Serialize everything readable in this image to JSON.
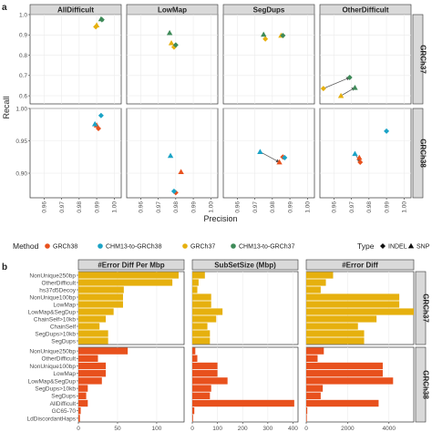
{
  "chart_data": [
    {
      "panel_label": "a",
      "type": "scatter",
      "xlabel": "Precision",
      "ylabel": "Recall",
      "xticks": [
        0.96,
        0.97,
        0.98,
        0.99,
        1.0
      ],
      "xtick_labels": [
        "0.96",
        "0.97",
        "0.98",
        "0.99",
        "1.00"
      ],
      "xlim": [
        0.952,
        1.004
      ],
      "rows": [
        {
          "name": "GRCh37",
          "ylim": [
            0.56,
            1.0
          ],
          "yticks": [
            0.6,
            0.7,
            0.8,
            0.9,
            1.0
          ],
          "ytick_labels": [
            "0.6",
            "0.7",
            "0.8",
            "0.9",
            "1.0"
          ]
        },
        {
          "name": "GRCh38",
          "ylim": [
            0.862,
            1.0
          ],
          "yticks": [
            0.9,
            0.95,
            1.0
          ],
          "ytick_labels": [
            "0.90",
            "0.95",
            "1.00"
          ]
        }
      ],
      "columns": [
        "AllDifficult",
        "LowMap",
        "SegDups",
        "OtherDifficult"
      ],
      "series_colors": {
        "GRCh38": "#e8511d",
        "CHM13-to-GRCh38": "#1ba3c6",
        "GRCh37": "#e6b00e",
        "CHM13-to-GRCh37": "#3e8a58"
      },
      "points": [
        {
          "row": "GRCh37",
          "col": "AllDifficult",
          "series": "GRCh37",
          "type": "INDEL",
          "x": 0.9895,
          "y": 0.94
        },
        {
          "row": "GRCh37",
          "col": "AllDifficult",
          "series": "GRCh37",
          "type": "SNP",
          "x": 0.99,
          "y": 0.948
        },
        {
          "row": "GRCh37",
          "col": "AllDifficult",
          "series": "CHM13-to-GRCh37",
          "type": "INDEL",
          "x": 0.993,
          "y": 0.975
        },
        {
          "row": "GRCh37",
          "col": "AllDifficult",
          "series": "CHM13-to-GRCh37",
          "type": "SNP",
          "x": 0.9925,
          "y": 0.978
        },
        {
          "row": "GRCh37",
          "col": "LowMap",
          "series": "GRCh37",
          "type": "INDEL",
          "x": 0.979,
          "y": 0.84
        },
        {
          "row": "GRCh37",
          "col": "LowMap",
          "series": "GRCh37",
          "type": "SNP",
          "x": 0.9775,
          "y": 0.86
        },
        {
          "row": "GRCh37",
          "col": "LowMap",
          "series": "CHM13-to-GRCh37",
          "type": "INDEL",
          "x": 0.98,
          "y": 0.85
        },
        {
          "row": "GRCh37",
          "col": "LowMap",
          "series": "CHM13-to-GRCh37",
          "type": "SNP",
          "x": 0.9765,
          "y": 0.91
        },
        {
          "row": "GRCh37",
          "col": "SegDups",
          "series": "GRCh37",
          "type": "INDEL",
          "x": 0.976,
          "y": 0.88
        },
        {
          "row": "GRCh37",
          "col": "SegDups",
          "series": "GRCh37",
          "type": "SNP",
          "x": 0.985,
          "y": 0.897
        },
        {
          "row": "GRCh37",
          "col": "SegDups",
          "series": "CHM13-to-GRCh37",
          "type": "INDEL",
          "x": 0.986,
          "y": 0.897
        },
        {
          "row": "GRCh37",
          "col": "SegDups",
          "series": "CHM13-to-GRCh37",
          "type": "SNP",
          "x": 0.975,
          "y": 0.902
        },
        {
          "row": "GRCh37",
          "col": "OtherDifficult",
          "series": "GRCh37",
          "type": "INDEL",
          "x": 0.954,
          "y": 0.636
        },
        {
          "row": "GRCh37",
          "col": "OtherDifficult",
          "series": "GRCh37",
          "type": "SNP",
          "x": 0.964,
          "y": 0.6
        },
        {
          "row": "GRCh37",
          "col": "OtherDifficult",
          "series": "CHM13-to-GRCh37",
          "type": "INDEL",
          "x": 0.969,
          "y": 0.69
        },
        {
          "row": "GRCh37",
          "col": "OtherDifficult",
          "series": "CHM13-to-GRCh37",
          "type": "SNP",
          "x": 0.972,
          "y": 0.64
        },
        {
          "row": "GRCh38",
          "col": "AllDifficult",
          "series": "GRCh38",
          "type": "INDEL",
          "x": 0.991,
          "y": 0.969
        },
        {
          "row": "GRCh38",
          "col": "AllDifficult",
          "series": "GRCh38",
          "type": "SNP",
          "x": 0.99,
          "y": 0.974
        },
        {
          "row": "GRCh38",
          "col": "AllDifficult",
          "series": "CHM13-to-GRCh38",
          "type": "INDEL",
          "x": 0.9925,
          "y": 0.989
        },
        {
          "row": "GRCh38",
          "col": "AllDifficult",
          "series": "CHM13-to-GRCh38",
          "type": "SNP",
          "x": 0.989,
          "y": 0.976
        },
        {
          "row": "GRCh38",
          "col": "LowMap",
          "series": "GRCh38",
          "type": "INDEL",
          "x": 0.98,
          "y": 0.87
        },
        {
          "row": "GRCh38",
          "col": "LowMap",
          "series": "GRCh38",
          "type": "SNP",
          "x": 0.983,
          "y": 0.902
        },
        {
          "row": "GRCh38",
          "col": "LowMap",
          "series": "CHM13-to-GRCh38",
          "type": "INDEL",
          "x": 0.979,
          "y": 0.872
        },
        {
          "row": "GRCh38",
          "col": "LowMap",
          "series": "CHM13-to-GRCh38",
          "type": "SNP",
          "x": 0.977,
          "y": 0.927
        },
        {
          "row": "GRCh38",
          "col": "SegDups",
          "series": "GRCh38",
          "type": "INDEL",
          "x": 0.986,
          "y": 0.925
        },
        {
          "row": "GRCh38",
          "col": "SegDups",
          "series": "GRCh38",
          "type": "SNP",
          "x": 0.984,
          "y": 0.917
        },
        {
          "row": "GRCh38",
          "col": "SegDups",
          "series": "CHM13-to-GRCh38",
          "type": "INDEL",
          "x": 0.987,
          "y": 0.924
        },
        {
          "row": "GRCh38",
          "col": "SegDups",
          "series": "CHM13-to-GRCh38",
          "type": "SNP",
          "x": 0.973,
          "y": 0.933
        },
        {
          "row": "GRCh38",
          "col": "OtherDifficult",
          "series": "GRCh38",
          "type": "INDEL",
          "x": 0.975,
          "y": 0.917
        },
        {
          "row": "GRCh38",
          "col": "OtherDifficult",
          "series": "GRCh38",
          "type": "SNP",
          "x": 0.9745,
          "y": 0.924
        },
        {
          "row": "GRCh38",
          "col": "OtherDifficult",
          "series": "CHM13-to-GRCh38",
          "type": "INDEL",
          "x": 0.99,
          "y": 0.965
        },
        {
          "row": "GRCh38",
          "col": "OtherDifficult",
          "series": "CHM13-to-GRCh38",
          "type": "SNP",
          "x": 0.972,
          "y": 0.93
        }
      ],
      "arrows": [
        {
          "row": "GRCh37",
          "col": "OtherDifficult",
          "from": [
            0.954,
            0.636
          ],
          "to": [
            0.969,
            0.69
          ]
        },
        {
          "row": "GRCh37",
          "col": "OtherDifficult",
          "from": [
            0.964,
            0.6
          ],
          "to": [
            0.972,
            0.64
          ]
        },
        {
          "row": "GRCh38",
          "col": "SegDups",
          "from": [
            0.973,
            0.933
          ],
          "to": [
            0.984,
            0.917
          ]
        },
        {
          "row": "GRCh38",
          "col": "OtherDifficult",
          "from": [
            0.972,
            0.93
          ],
          "to": [
            0.975,
            0.917
          ]
        }
      ]
    },
    {
      "panel_label": "b",
      "type": "bar",
      "orientation": "horizontal",
      "columns": [
        {
          "name": "#Error Diff Per Mbp",
          "xlim": [
            0,
            135
          ],
          "xticks": [
            0,
            50,
            100
          ],
          "xtick_labels": [
            "0",
            "50",
            "100"
          ]
        },
        {
          "name": "SubSetSize (Mbp)",
          "xlim": [
            0,
            420
          ],
          "xticks": [
            0,
            100,
            200,
            300,
            400
          ],
          "xtick_labels": [
            "0",
            "100",
            "200",
            "300",
            "400"
          ]
        },
        {
          "name": "#Error Diff",
          "xlim": [
            0,
            5200
          ],
          "xticks": [
            0,
            2000,
            4000
          ],
          "xtick_labels": [
            "0",
            "2000",
            "4000"
          ]
        }
      ],
      "rows": [
        {
          "name": "GRCh37",
          "color": "#e6b00e",
          "categories": [
            "NonUnique250bp",
            "OtherDifficult",
            "hs37d5Decoy",
            "NonUnique100bp",
            "LowMap",
            "LowMap&SegDup",
            "ChainSelf>10kb",
            "ChainSelf",
            "SegDups>10kb",
            "SegDups"
          ],
          "values": [
            [
              128,
              120,
              58,
              57,
              57,
              45,
              35,
              27,
              38,
              38
            ],
            [
              50,
              25,
              20,
              75,
              75,
              120,
              95,
              60,
              70,
              70
            ],
            [
              1300,
              950,
              700,
              4500,
              4500,
              5200,
              3400,
              2500,
              2800,
              2800
            ]
          ]
        },
        {
          "name": "GRCh38",
          "color": "#e8511d",
          "categories": [
            "NonUnique250bp",
            "OtherDifficult",
            "NonUnique100bp",
            "LowMap",
            "LowMap&SegDup",
            "SegDups>10kb",
            "SegDups",
            "AllDifficult",
            "GC65-70",
            "LdDiscordantHaps"
          ],
          "values": [
            [
              63,
              25,
              35,
              35,
              30,
              12,
              10,
              12,
              3,
              2
            ],
            [
              12,
              20,
              100,
              100,
              140,
              75,
              70,
              405,
              8,
              3
            ],
            [
              850,
              550,
              3700,
              3700,
              4200,
              800,
              700,
              3500,
              50,
              30
            ]
          ]
        }
      ]
    }
  ],
  "legend": {
    "method_title": "Method",
    "method_items": [
      {
        "label": "GRCh38",
        "color": "#e8511d"
      },
      {
        "label": "CHM13-to-GRCh38",
        "color": "#1ba3c6"
      },
      {
        "label": "GRCh37",
        "color": "#e6b00e"
      },
      {
        "label": "CHM13-to-GRCh37",
        "color": "#3e8a58"
      }
    ],
    "type_title": "Type",
    "type_items": [
      {
        "label": "INDEL",
        "shape": "diamond"
      },
      {
        "label": "SNP",
        "shape": "triangle"
      }
    ]
  }
}
